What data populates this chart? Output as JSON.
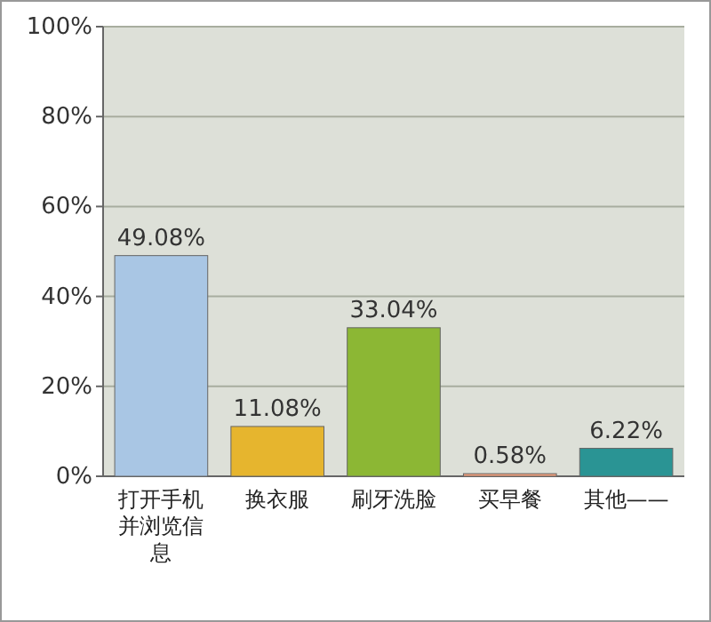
{
  "chart_data": {
    "type": "bar",
    "categories": [
      "打开手机并浏览信息",
      "换衣服",
      "刷牙洗脸",
      "买早餐",
      "其他——"
    ],
    "values": [
      49.08,
      11.08,
      33.04,
      0.58,
      6.22
    ],
    "colors": [
      "#a9c6e4",
      "#e6b52e",
      "#8cb734",
      "#f2a07c",
      "#2a9494"
    ],
    "value_labels": [
      "49.08%",
      "11.08%",
      "33.04%",
      "0.58%",
      "6.22%"
    ],
    "ylim": [
      0,
      100
    ],
    "yticks": [
      {
        "value": 0,
        "label": "0%"
      },
      {
        "value": 20,
        "label": "20%"
      },
      {
        "value": 40,
        "label": "40%"
      },
      {
        "value": 60,
        "label": "60%"
      },
      {
        "value": 80,
        "label": "80%"
      },
      {
        "value": 100,
        "label": "100%"
      }
    ],
    "grid": "y"
  }
}
